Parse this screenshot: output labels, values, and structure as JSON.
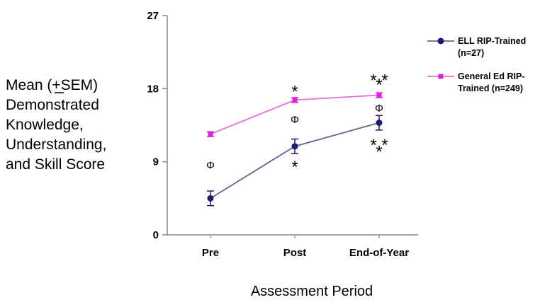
{
  "chart_data": {
    "type": "line",
    "title": "",
    "ylabel_lines": [
      "Mean (+SEM)",
      "Demonstrated",
      "Knowledge,",
      "Understanding,",
      "and Skill Score"
    ],
    "xlabel": "Assessment Period",
    "categories": [
      "Pre",
      "Post",
      "End-of-Year"
    ],
    "ylim": [
      0,
      27
    ],
    "yticks": [
      "0",
      "9",
      "18",
      "27"
    ],
    "grid": false,
    "legend_position": "right",
    "series": [
      {
        "name_lines": [
          "ELL RIP-Trained",
          "(n=27)"
        ],
        "color": "#1a1a6e",
        "line_color": "#5b6a8c",
        "marker": "circle",
        "values": [
          4.5,
          10.9,
          13.8
        ],
        "sem": [
          0.9,
          0.9,
          0.9
        ]
      },
      {
        "name_lines": [
          "General Ed RIP-",
          "Trained (n=249)"
        ],
        "color": "#e020e0",
        "line_color": "#e070e0",
        "marker": "square",
        "values": [
          12.4,
          16.6,
          17.2
        ],
        "sem": [
          0.3,
          0.3,
          0.3
        ]
      }
    ],
    "annotations": [
      {
        "symbol": "Φ",
        "category": 0,
        "y": 8.6
      },
      {
        "symbol": "Φ",
        "category": 1,
        "y": 14.2
      },
      {
        "symbol": "Φ",
        "category": 2,
        "y": 15.6
      },
      {
        "symbol": "*",
        "category": 1,
        "y": 18.0
      },
      {
        "symbol": "*",
        "category": 1,
        "y": 8.7
      },
      {
        "symbol": "* *",
        "category": 2,
        "y": 19.4
      },
      {
        "symbol": "*",
        "category": 2,
        "y": 18.8
      },
      {
        "symbol": "* *",
        "category": 2,
        "y": 11.4
      },
      {
        "symbol": "*",
        "category": 2,
        "y": 10.6
      }
    ]
  }
}
